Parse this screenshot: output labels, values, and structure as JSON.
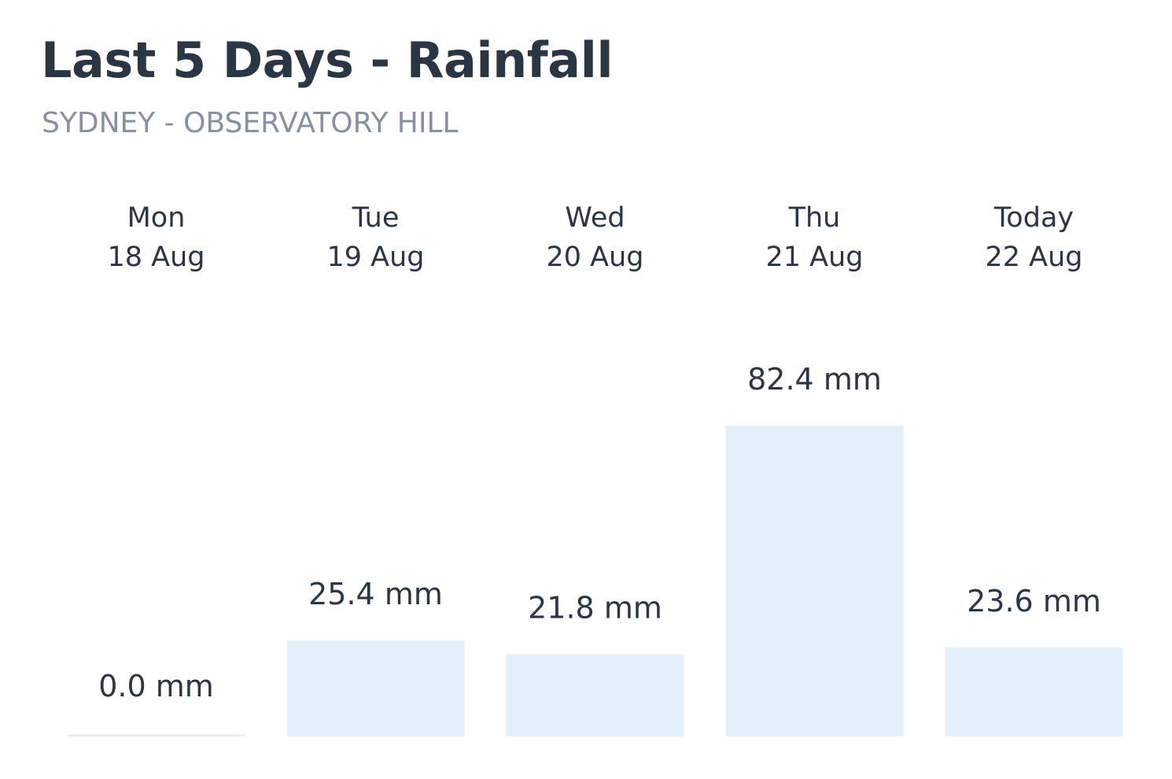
{
  "title": "Last 5 Days - Rainfall",
  "subtitle": "SYDNEY - OBSERVATORY HILL",
  "colors": {
    "bar": "#e3eff9",
    "text": "#2b3645",
    "subtitle": "#8591a1"
  },
  "chart_data": {
    "type": "bar",
    "title": "Last 5 Days - Rainfall",
    "subtitle": "SYDNEY - OBSERVATORY HILL",
    "categories": [
      {
        "day": "Mon",
        "date": "18 Aug"
      },
      {
        "day": "Tue",
        "date": "19 Aug"
      },
      {
        "day": "Wed",
        "date": "20 Aug"
      },
      {
        "day": "Thu",
        "date": "21 Aug"
      },
      {
        "day": "Today",
        "date": "22 Aug"
      }
    ],
    "values": [
      0.0,
      25.4,
      21.8,
      82.4,
      23.6
    ],
    "value_labels": [
      "0.0 mm",
      "25.4 mm",
      "21.8 mm",
      "82.4 mm",
      "23.6 mm"
    ],
    "unit": "mm",
    "ylim": [
      0,
      82.4
    ],
    "grid": false,
    "legend": "none"
  }
}
